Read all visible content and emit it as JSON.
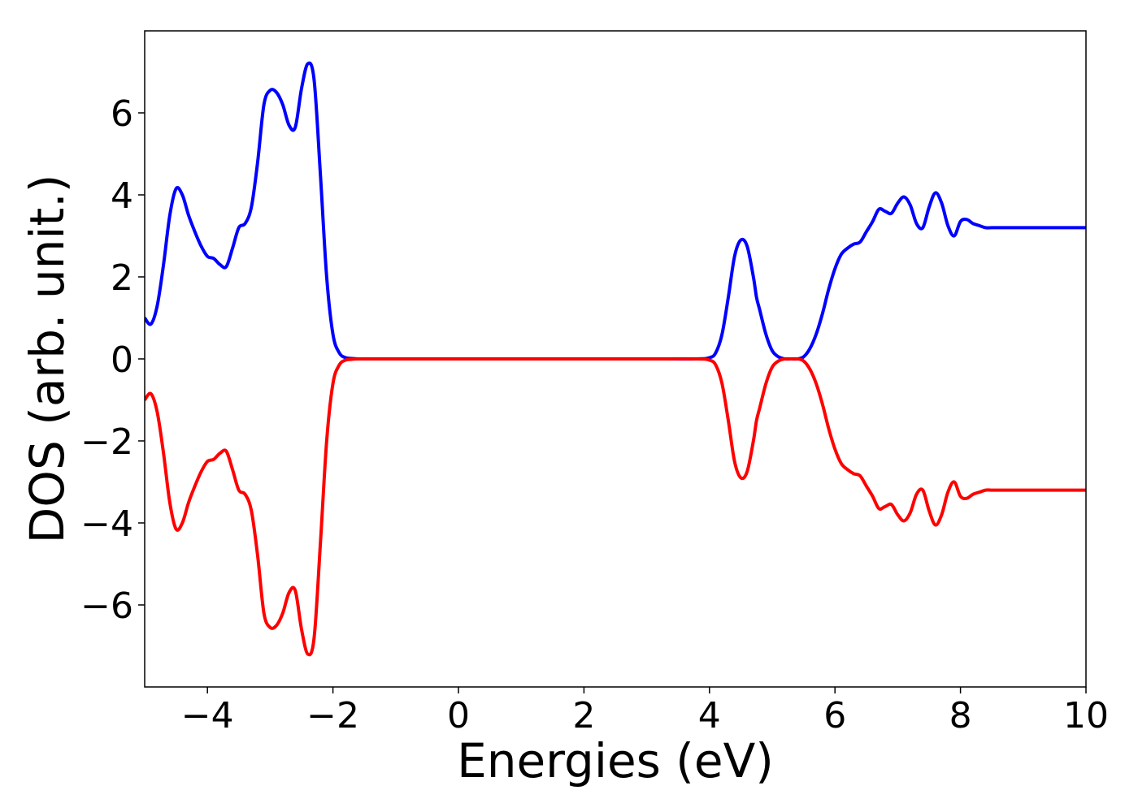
{
  "chart_data": {
    "type": "line",
    "title": "",
    "xlabel": "Energies (eV)",
    "ylabel": "DOS (arb. unit.)",
    "xlim": [
      -5,
      10
    ],
    "ylim": [
      -8,
      8
    ],
    "grid": false,
    "x_ticks": [
      -4,
      -2,
      0,
      2,
      4,
      6,
      8,
      10
    ],
    "x_tick_labels": [
      "−4",
      "−2",
      "0",
      "2",
      "4",
      "6",
      "8",
      "10"
    ],
    "y_ticks": [
      -6,
      -4,
      -2,
      0,
      2,
      4,
      6
    ],
    "y_tick_labels": [
      "−6",
      "−4",
      "−2",
      "0",
      "2",
      "4",
      "6"
    ],
    "x": [
      -5.0,
      -4.9,
      -4.8,
      -4.7,
      -4.6,
      -4.5,
      -4.4,
      -4.3,
      -4.2,
      -4.1,
      -4.0,
      -3.9,
      -3.8,
      -3.7,
      -3.6,
      -3.5,
      -3.4,
      -3.3,
      -3.2,
      -3.1,
      -3.0,
      -2.9,
      -2.8,
      -2.7,
      -2.6,
      -2.5,
      -2.4,
      -2.3,
      -2.2,
      -2.1,
      -2.0,
      -1.9,
      -1.8,
      -1.7,
      -1.6,
      -1.5,
      -1.4,
      -1.3,
      -1.2,
      -1.1,
      -1.0,
      -0.9,
      -0.8,
      -0.7,
      -0.6,
      -0.5,
      0.0,
      1.0,
      2.0,
      3.0,
      3.8,
      4.0,
      4.1,
      4.2,
      4.3,
      4.4,
      4.5,
      4.6,
      4.7,
      4.75,
      4.8,
      4.9,
      5.0,
      5.1,
      5.2,
      5.3,
      5.4,
      5.5,
      5.6,
      5.7,
      5.8,
      5.9,
      6.0,
      6.1,
      6.2,
      6.3,
      6.4,
      6.5,
      6.6,
      6.7,
      6.8,
      6.9,
      7.0,
      7.1,
      7.2,
      7.3,
      7.4,
      7.5,
      7.6,
      7.7,
      7.8,
      7.9,
      8.0,
      8.1,
      8.2,
      8.3,
      8.4,
      8.5,
      8.6,
      8.7,
      8.8,
      8.9,
      9.0,
      9.1,
      9.2,
      9.3,
      9.4,
      9.5,
      9.6,
      9.7,
      9.8,
      9.9,
      10.0
    ],
    "series": [
      {
        "color": "#0000ff",
        "values": [
          1.0,
          0.85,
          1.3,
          2.3,
          3.5,
          4.15,
          4.0,
          3.5,
          3.1,
          2.75,
          2.5,
          2.45,
          2.3,
          2.25,
          2.7,
          3.2,
          3.3,
          3.7,
          4.8,
          6.2,
          6.55,
          6.5,
          6.2,
          5.7,
          5.65,
          6.6,
          7.2,
          6.8,
          4.5,
          2.0,
          0.6,
          0.15,
          0.03,
          0.01,
          0.0,
          0.0,
          0.0,
          0.0,
          0.0,
          0.0,
          0.0,
          0.0,
          0.0,
          0.0,
          0.0,
          0.0,
          0.0,
          0.0,
          0.0,
          0.0,
          0.0,
          0.03,
          0.15,
          0.6,
          1.5,
          2.5,
          2.9,
          2.75,
          2.0,
          1.5,
          1.2,
          0.6,
          0.2,
          0.05,
          0.0,
          0.0,
          0.0,
          0.05,
          0.25,
          0.6,
          1.1,
          1.7,
          2.2,
          2.55,
          2.7,
          2.8,
          2.85,
          3.1,
          3.35,
          3.65,
          3.6,
          3.55,
          3.8,
          3.95,
          3.75,
          3.3,
          3.2,
          3.7,
          4.05,
          3.8,
          3.25,
          3.0,
          3.35,
          3.4,
          3.3,
          3.25,
          3.2,
          3.2,
          3.2,
          3.2,
          3.2,
          3.2,
          3.2,
          3.2,
          3.2,
          3.2,
          3.2,
          3.2,
          3.2,
          3.2,
          3.2,
          3.2,
          3.2
        ]
      },
      {
        "color": "#ff0000",
        "values": [
          -1.0,
          -0.85,
          -1.3,
          -2.3,
          -3.5,
          -4.15,
          -4.0,
          -3.5,
          -3.1,
          -2.75,
          -2.5,
          -2.45,
          -2.3,
          -2.25,
          -2.7,
          -3.2,
          -3.3,
          -3.7,
          -4.8,
          -6.2,
          -6.55,
          -6.5,
          -6.2,
          -5.7,
          -5.65,
          -6.6,
          -7.2,
          -6.8,
          -4.5,
          -2.0,
          -0.6,
          -0.15,
          -0.03,
          -0.01,
          0.0,
          0.0,
          0.0,
          0.0,
          0.0,
          0.0,
          0.0,
          0.0,
          0.0,
          0.0,
          0.0,
          0.0,
          0.0,
          0.0,
          0.0,
          0.0,
          0.0,
          -0.03,
          -0.15,
          -0.6,
          -1.5,
          -2.5,
          -2.9,
          -2.75,
          -2.0,
          -1.5,
          -1.2,
          -0.6,
          -0.2,
          -0.05,
          0.0,
          0.0,
          0.0,
          -0.05,
          -0.25,
          -0.6,
          -1.1,
          -1.7,
          -2.2,
          -2.55,
          -2.7,
          -2.8,
          -2.85,
          -3.1,
          -3.35,
          -3.65,
          -3.6,
          -3.55,
          -3.8,
          -3.95,
          -3.75,
          -3.3,
          -3.2,
          -3.7,
          -4.05,
          -3.8,
          -3.25,
          -3.0,
          -3.35,
          -3.4,
          -3.3,
          -3.25,
          -3.2,
          -3.2,
          -3.2,
          -3.2,
          -3.2,
          -3.2,
          -3.2,
          -3.2,
          -3.2,
          -3.2,
          -3.2,
          -3.2,
          -3.2,
          -3.2,
          -3.2,
          -3.2,
          -3.2
        ]
      }
    ]
  }
}
